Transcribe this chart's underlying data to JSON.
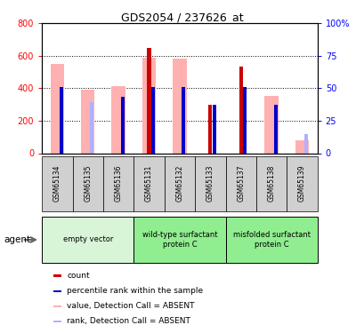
{
  "title": "GDS2054 / 237626_at",
  "samples": [
    "GSM65134",
    "GSM65135",
    "GSM65136",
    "GSM65131",
    "GSM65132",
    "GSM65133",
    "GSM65137",
    "GSM65138",
    "GSM65139"
  ],
  "groups": [
    {
      "label": "empty vector",
      "start": 0,
      "end": 3,
      "color": "#d0f0d0"
    },
    {
      "label": "wild-type surfactant\nprotein C",
      "start": 3,
      "end": 6,
      "color": "#90ee90"
    },
    {
      "label": "misfolded surfactant\nprotein C",
      "start": 6,
      "end": 9,
      "color": "#90ee90"
    }
  ],
  "count_values": [
    0,
    0,
    0,
    649,
    0,
    296,
    536,
    0,
    0
  ],
  "percentile_rank_values": [
    410,
    0,
    350,
    410,
    410,
    296,
    410,
    300,
    0
  ],
  "absent_value_values": [
    550,
    390,
    415,
    590,
    585,
    0,
    0,
    355,
    78
  ],
  "absent_rank_values": [
    0,
    315,
    0,
    0,
    0,
    0,
    0,
    0,
    120
  ],
  "count_color": "#cc0000",
  "percentile_color": "#0000cc",
  "absent_value_color": "#ffb0b0",
  "absent_rank_color": "#b0b0ff",
  "ylim_left": [
    0,
    800
  ],
  "ylim_right": [
    0,
    100
  ],
  "yticks_left": [
    0,
    200,
    400,
    600,
    800
  ],
  "yticks_right": [
    0,
    25,
    50,
    75,
    100
  ],
  "wide_bar_width": 0.45,
  "narrow_bar_width": 0.12,
  "background_color": "#ffffff"
}
